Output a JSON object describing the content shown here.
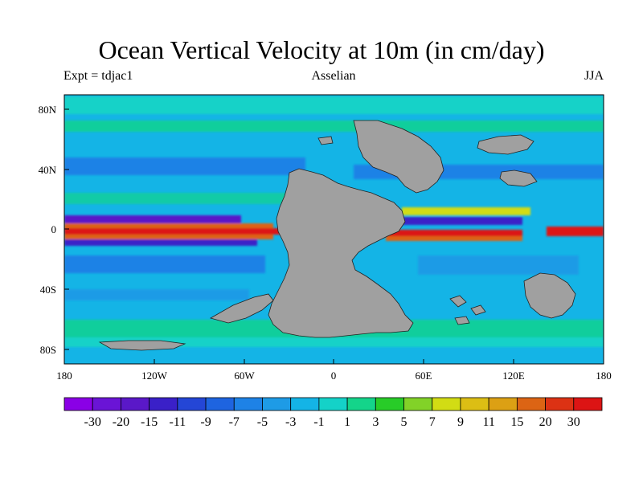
{
  "header": {
    "title": "Ocean Vertical Velocity at 10m (in cm/day)",
    "left_label": "Expt = tdjac1",
    "center_label": "Asselian",
    "right_label": "JJA"
  },
  "axes": {
    "longitude_labels": [
      "180",
      "120W",
      "60W",
      "0",
      "60E",
      "120E",
      "180"
    ],
    "latitude_labels": [
      "80N",
      "40N",
      "0",
      "40S",
      "80S"
    ]
  },
  "colorbar": {
    "colors": [
      "#8a00e6",
      "#6a14d6",
      "#5a18c8",
      "#3a20c8",
      "#2446d6",
      "#1e64e0",
      "#1e82e6",
      "#1e9be6",
      "#14b4e6",
      "#14d2c8",
      "#14d48a",
      "#28cc28",
      "#82d228",
      "#d2dc14",
      "#dcbe14",
      "#dca014",
      "#dc6414",
      "#dc3214",
      "#dc1414"
    ],
    "labels": [
      "-30",
      "-20",
      "-15",
      "-11",
      "-9",
      "-7",
      "-5",
      "-3",
      "-1",
      "1",
      "3",
      "5",
      "7",
      "9",
      "11",
      "15",
      "20",
      "30"
    ]
  },
  "map_colors": {
    "land": "#a0a0a0",
    "ocean_default": "#14b4e6"
  }
}
